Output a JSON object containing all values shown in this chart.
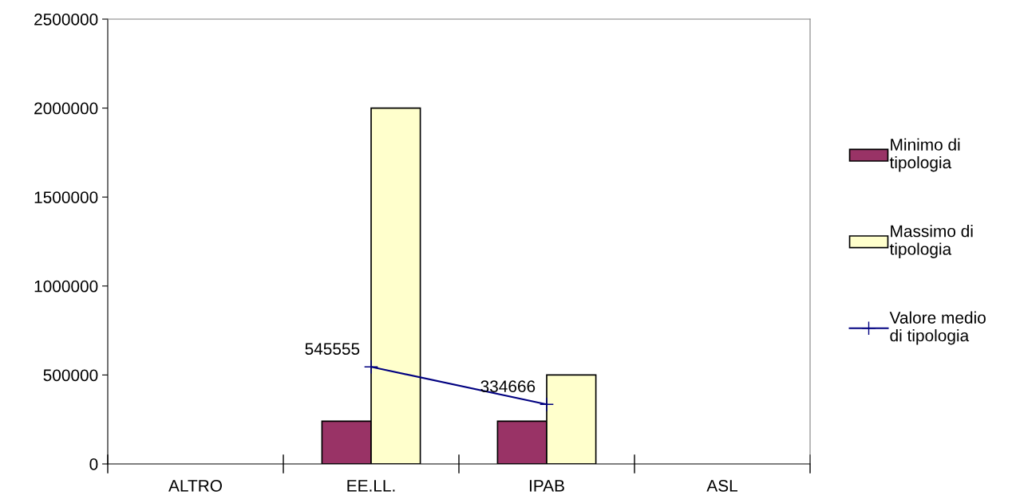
{
  "chart_data": {
    "type": "bar",
    "categories": [
      "ALTRO",
      "EE.LL.",
      "IPAB",
      "ASL"
    ],
    "series": [
      {
        "name": "Minimo di\ntipologia",
        "color": "#993366",
        "values": [
          null,
          240000,
          240000,
          null
        ]
      },
      {
        "name": "Massimo di\ntipologia",
        "color": "#ffffcc",
        "values": [
          null,
          2000000,
          500000,
          null
        ]
      },
      {
        "name": "Valore medio\ndi tipologia",
        "type": "line",
        "color": "#000080",
        "marker": "cross",
        "values": [
          null,
          545555,
          334666,
          null
        ],
        "value_labels": [
          null,
          "545555",
          "334666",
          null
        ]
      }
    ],
    "ylim": [
      0,
      2500000
    ],
    "yticks": [
      0,
      500000,
      1000000,
      1500000,
      2000000,
      2500000
    ],
    "grid": false,
    "legend": "right"
  }
}
